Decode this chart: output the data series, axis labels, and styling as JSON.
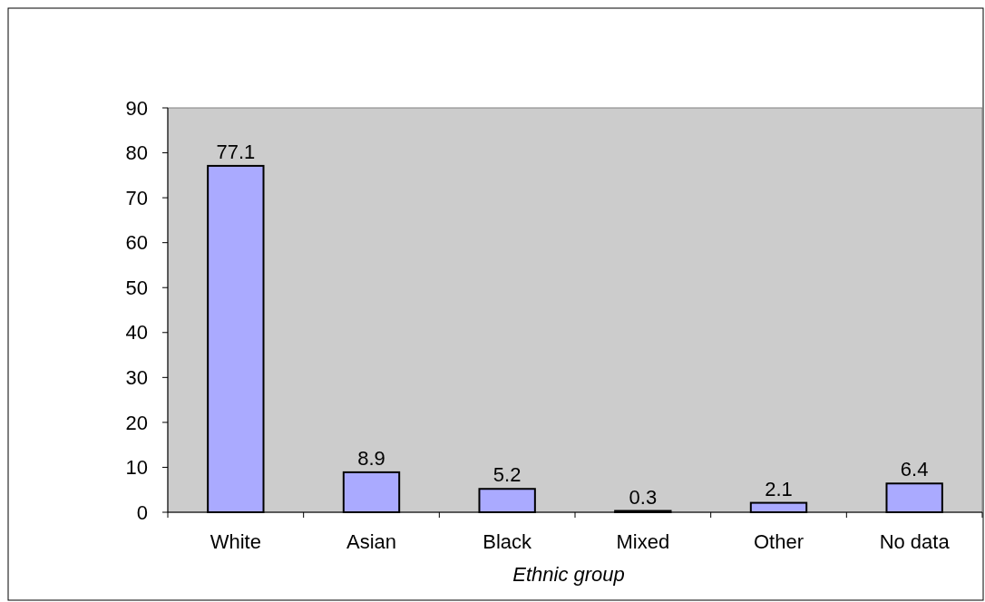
{
  "chart_data": {
    "type": "bar",
    "xlabel": "Ethnic group",
    "categories": [
      "White",
      "Asian",
      "Black",
      "Mixed",
      "Other",
      "No data"
    ],
    "values": [
      77.1,
      8.9,
      5.2,
      0.3,
      2.1,
      6.4
    ],
    "color": "#aaaaff",
    "ylim": [
      0,
      90
    ],
    "yticks": [
      0,
      10,
      20,
      30,
      40,
      50,
      60,
      70,
      80,
      90
    ],
    "data_labels": true
  }
}
